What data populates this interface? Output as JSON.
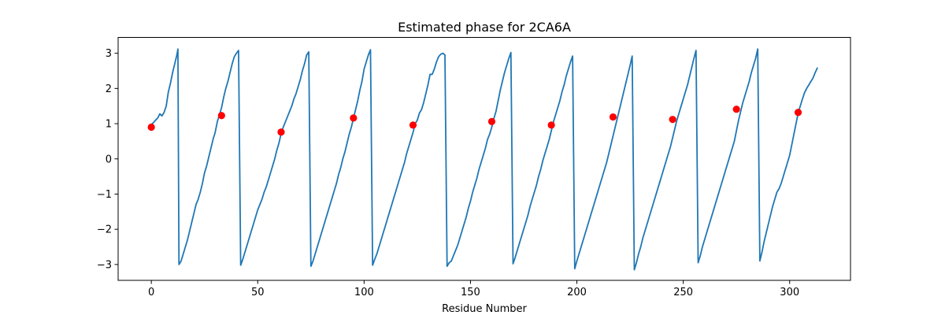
{
  "chart_data": {
    "type": "line",
    "title": "Estimated phase for 2CA6A",
    "xlabel": "Residue Number",
    "ylabel": "",
    "xlim": [
      -15.6,
      328.6
    ],
    "ylim": [
      -3.45,
      3.45
    ],
    "xticks": [
      0,
      50,
      100,
      150,
      200,
      250,
      300
    ],
    "yticks": [
      -3,
      -2,
      -1,
      0,
      1,
      2,
      3
    ],
    "grid": false,
    "series": [
      {
        "type": "line",
        "color": "#1f77b4",
        "points": [
          [
            0,
            0.97
          ],
          [
            1,
            1.03
          ],
          [
            2,
            1.1
          ],
          [
            3,
            1.16
          ],
          [
            4,
            1.28
          ],
          [
            5,
            1.22
          ],
          [
            6,
            1.32
          ],
          [
            7,
            1.5
          ],
          [
            8,
            1.9
          ],
          [
            9,
            2.15
          ],
          [
            10,
            2.45
          ],
          [
            11,
            2.7
          ],
          [
            12,
            2.95
          ],
          [
            12.5,
            3.12
          ],
          [
            13,
            -3.0
          ],
          [
            14,
            -2.9
          ],
          [
            15,
            -2.7
          ],
          [
            16,
            -2.5
          ],
          [
            17,
            -2.3
          ],
          [
            18,
            -2.05
          ],
          [
            19,
            -1.8
          ],
          [
            20,
            -1.55
          ],
          [
            21,
            -1.3
          ],
          [
            22,
            -1.15
          ],
          [
            23,
            -0.95
          ],
          [
            24,
            -0.7
          ],
          [
            25,
            -0.4
          ],
          [
            26,
            -0.2
          ],
          [
            27,
            0.05
          ],
          [
            28,
            0.3
          ],
          [
            29,
            0.55
          ],
          [
            30,
            0.75
          ],
          [
            31,
            1.05
          ],
          [
            32,
            1.25
          ],
          [
            33,
            1.45
          ],
          [
            34,
            1.75
          ],
          [
            35,
            2.0
          ],
          [
            36,
            2.2
          ],
          [
            37,
            2.45
          ],
          [
            38,
            2.7
          ],
          [
            39,
            2.9
          ],
          [
            40,
            3.0
          ],
          [
            41,
            3.08
          ],
          [
            42,
            -3.02
          ],
          [
            43,
            -2.85
          ],
          [
            44,
            -2.65
          ],
          [
            45,
            -2.45
          ],
          [
            46,
            -2.25
          ],
          [
            47,
            -2.05
          ],
          [
            48,
            -1.85
          ],
          [
            49,
            -1.65
          ],
          [
            50,
            -1.45
          ],
          [
            51,
            -1.3
          ],
          [
            52,
            -1.15
          ],
          [
            53,
            -0.95
          ],
          [
            54,
            -0.8
          ],
          [
            55,
            -0.6
          ],
          [
            56,
            -0.4
          ],
          [
            57,
            -0.2
          ],
          [
            58,
            0.0
          ],
          [
            59,
            0.25
          ],
          [
            60,
            0.45
          ],
          [
            61,
            0.72
          ],
          [
            62,
            0.9
          ],
          [
            63,
            1.05
          ],
          [
            64,
            1.2
          ],
          [
            65,
            1.35
          ],
          [
            66,
            1.5
          ],
          [
            67,
            1.7
          ],
          [
            68,
            1.85
          ],
          [
            69,
            2.05
          ],
          [
            70,
            2.25
          ],
          [
            71,
            2.5
          ],
          [
            72,
            2.7
          ],
          [
            73,
            2.95
          ],
          [
            74,
            3.04
          ],
          [
            75,
            -3.05
          ],
          [
            76,
            -2.9
          ],
          [
            77,
            -2.7
          ],
          [
            78,
            -2.5
          ],
          [
            79,
            -2.3
          ],
          [
            80,
            -2.1
          ],
          [
            81,
            -1.9
          ],
          [
            82,
            -1.7
          ],
          [
            83,
            -1.5
          ],
          [
            84,
            -1.3
          ],
          [
            85,
            -1.1
          ],
          [
            86,
            -0.9
          ],
          [
            87,
            -0.7
          ],
          [
            88,
            -0.45
          ],
          [
            89,
            -0.25
          ],
          [
            90,
            0.0
          ],
          [
            91,
            0.2
          ],
          [
            92,
            0.45
          ],
          [
            93,
            0.7
          ],
          [
            94,
            0.9
          ],
          [
            95,
            1.15
          ],
          [
            96,
            1.4
          ],
          [
            97,
            1.65
          ],
          [
            98,
            1.95
          ],
          [
            99,
            2.2
          ],
          [
            100,
            2.55
          ],
          [
            101,
            2.75
          ],
          [
            102,
            2.95
          ],
          [
            103,
            3.1
          ],
          [
            104,
            -3.02
          ],
          [
            105,
            -2.85
          ],
          [
            106,
            -2.7
          ],
          [
            107,
            -2.5
          ],
          [
            108,
            -2.3
          ],
          [
            109,
            -2.1
          ],
          [
            110,
            -1.9
          ],
          [
            111,
            -1.7
          ],
          [
            112,
            -1.5
          ],
          [
            113,
            -1.3
          ],
          [
            114,
            -1.1
          ],
          [
            115,
            -0.9
          ],
          [
            116,
            -0.7
          ],
          [
            117,
            -0.5
          ],
          [
            118,
            -0.3
          ],
          [
            119,
            -0.1
          ],
          [
            120,
            0.15
          ],
          [
            121,
            0.35
          ],
          [
            122,
            0.55
          ],
          [
            123,
            0.75
          ],
          [
            124,
            1.0
          ],
          [
            125,
            1.1
          ],
          [
            126,
            1.3
          ],
          [
            127,
            1.4
          ],
          [
            128,
            1.6
          ],
          [
            129,
            1.85
          ],
          [
            130,
            2.1
          ],
          [
            131,
            2.4
          ],
          [
            132,
            2.4
          ],
          [
            133,
            2.55
          ],
          [
            134,
            2.75
          ],
          [
            135,
            2.9
          ],
          [
            136,
            2.97
          ],
          [
            137,
            3.0
          ],
          [
            138,
            2.95
          ],
          [
            139,
            -3.05
          ],
          [
            140,
            -2.95
          ],
          [
            141,
            -2.9
          ],
          [
            142,
            -2.75
          ],
          [
            143,
            -2.6
          ],
          [
            144,
            -2.45
          ],
          [
            145,
            -2.25
          ],
          [
            146,
            -2.05
          ],
          [
            147,
            -1.85
          ],
          [
            148,
            -1.65
          ],
          [
            149,
            -1.4
          ],
          [
            150,
            -1.2
          ],
          [
            151,
            -0.95
          ],
          [
            152,
            -0.75
          ],
          [
            153,
            -0.55
          ],
          [
            154,
            -0.3
          ],
          [
            155,
            -0.1
          ],
          [
            156,
            0.1
          ],
          [
            157,
            0.3
          ],
          [
            158,
            0.55
          ],
          [
            159,
            0.7
          ],
          [
            160,
            0.9
          ],
          [
            161,
            1.15
          ],
          [
            162,
            1.35
          ],
          [
            163,
            1.65
          ],
          [
            164,
            1.95
          ],
          [
            165,
            2.2
          ],
          [
            166,
            2.45
          ],
          [
            167,
            2.65
          ],
          [
            168,
            2.85
          ],
          [
            169,
            3.02
          ],
          [
            170,
            -2.98
          ],
          [
            171,
            -2.8
          ],
          [
            172,
            -2.6
          ],
          [
            173,
            -2.4
          ],
          [
            174,
            -2.2
          ],
          [
            175,
            -2.0
          ],
          [
            176,
            -1.8
          ],
          [
            177,
            -1.6
          ],
          [
            178,
            -1.35
          ],
          [
            179,
            -1.15
          ],
          [
            180,
            -0.95
          ],
          [
            181,
            -0.75
          ],
          [
            182,
            -0.5
          ],
          [
            183,
            -0.3
          ],
          [
            184,
            -0.05
          ],
          [
            185,
            0.15
          ],
          [
            186,
            0.35
          ],
          [
            187,
            0.55
          ],
          [
            188,
            0.8
          ],
          [
            189,
            1.05
          ],
          [
            190,
            1.25
          ],
          [
            191,
            1.45
          ],
          [
            192,
            1.65
          ],
          [
            193,
            1.9
          ],
          [
            194,
            2.1
          ],
          [
            195,
            2.35
          ],
          [
            196,
            2.55
          ],
          [
            197,
            2.75
          ],
          [
            198,
            2.92
          ],
          [
            199,
            -3.12
          ],
          [
            200,
            -2.9
          ],
          [
            201,
            -2.7
          ],
          [
            202,
            -2.5
          ],
          [
            203,
            -2.3
          ],
          [
            204,
            -2.1
          ],
          [
            205,
            -1.9
          ],
          [
            206,
            -1.7
          ],
          [
            207,
            -1.5
          ],
          [
            208,
            -1.3
          ],
          [
            209,
            -1.1
          ],
          [
            210,
            -0.9
          ],
          [
            211,
            -0.7
          ],
          [
            212,
            -0.5
          ],
          [
            213,
            -0.3
          ],
          [
            214,
            -0.1
          ],
          [
            215,
            0.15
          ],
          [
            216,
            0.4
          ],
          [
            217,
            0.65
          ],
          [
            218,
            0.9
          ],
          [
            219,
            1.15
          ],
          [
            220,
            1.4
          ],
          [
            221,
            1.65
          ],
          [
            222,
            1.9
          ],
          [
            223,
            2.15
          ],
          [
            224,
            2.4
          ],
          [
            225,
            2.65
          ],
          [
            226,
            2.92
          ],
          [
            227,
            -3.15
          ],
          [
            228,
            -2.95
          ],
          [
            229,
            -2.7
          ],
          [
            230,
            -2.5
          ],
          [
            231,
            -2.25
          ],
          [
            232,
            -2.05
          ],
          [
            233,
            -1.85
          ],
          [
            234,
            -1.65
          ],
          [
            235,
            -1.45
          ],
          [
            236,
            -1.25
          ],
          [
            237,
            -1.05
          ],
          [
            238,
            -0.85
          ],
          [
            239,
            -0.65
          ],
          [
            240,
            -0.45
          ],
          [
            241,
            -0.25
          ],
          [
            242,
            -0.05
          ],
          [
            243,
            0.15
          ],
          [
            244,
            0.35
          ],
          [
            245,
            0.6
          ],
          [
            246,
            0.85
          ],
          [
            247,
            1.1
          ],
          [
            248,
            1.3
          ],
          [
            249,
            1.5
          ],
          [
            250,
            1.7
          ],
          [
            251,
            1.9
          ],
          [
            252,
            2.1
          ],
          [
            253,
            2.35
          ],
          [
            254,
            2.6
          ],
          [
            255,
            2.85
          ],
          [
            256,
            3.08
          ],
          [
            257,
            -2.95
          ],
          [
            258,
            -2.75
          ],
          [
            259,
            -2.5
          ],
          [
            260,
            -2.3
          ],
          [
            261,
            -2.1
          ],
          [
            262,
            -1.9
          ],
          [
            263,
            -1.7
          ],
          [
            264,
            -1.5
          ],
          [
            265,
            -1.3
          ],
          [
            266,
            -1.1
          ],
          [
            267,
            -0.9
          ],
          [
            268,
            -0.7
          ],
          [
            269,
            -0.5
          ],
          [
            270,
            -0.3
          ],
          [
            271,
            -0.1
          ],
          [
            272,
            0.1
          ],
          [
            273,
            0.3
          ],
          [
            274,
            0.5
          ],
          [
            275,
            0.8
          ],
          [
            276,
            1.1
          ],
          [
            277,
            1.35
          ],
          [
            278,
            1.6
          ],
          [
            279,
            1.8
          ],
          [
            280,
            2.0
          ],
          [
            281,
            2.2
          ],
          [
            282,
            2.45
          ],
          [
            283,
            2.65
          ],
          [
            284,
            2.85
          ],
          [
            285,
            3.12
          ],
          [
            286,
            -2.9
          ],
          [
            287,
            -2.65
          ],
          [
            288,
            -2.35
          ],
          [
            289,
            -2.1
          ],
          [
            290,
            -1.85
          ],
          [
            291,
            -1.6
          ],
          [
            292,
            -1.35
          ],
          [
            293,
            -1.15
          ],
          [
            294,
            -0.95
          ],
          [
            295,
            -0.85
          ],
          [
            296,
            -0.7
          ],
          [
            297,
            -0.5
          ],
          [
            298,
            -0.3
          ],
          [
            299,
            -0.1
          ],
          [
            300,
            0.1
          ],
          [
            301,
            0.4
          ],
          [
            302,
            0.7
          ],
          [
            303,
            1.0
          ],
          [
            304,
            1.3
          ],
          [
            305,
            1.5
          ],
          [
            306,
            1.7
          ],
          [
            307,
            1.88
          ],
          [
            308,
            2.0
          ],
          [
            309,
            2.1
          ],
          [
            310,
            2.2
          ],
          [
            311,
            2.3
          ],
          [
            312,
            2.45
          ],
          [
            313,
            2.58
          ]
        ]
      },
      {
        "type": "scatter",
        "color": "#ff0000",
        "points": [
          [
            0,
            0.9
          ],
          [
            33,
            1.23
          ],
          [
            61,
            0.76
          ],
          [
            95,
            1.16
          ],
          [
            123,
            0.96
          ],
          [
            160,
            1.06
          ],
          [
            188,
            0.96
          ],
          [
            217,
            1.19
          ],
          [
            245,
            1.12
          ],
          [
            275,
            1.41
          ],
          [
            304,
            1.32
          ]
        ]
      }
    ]
  }
}
